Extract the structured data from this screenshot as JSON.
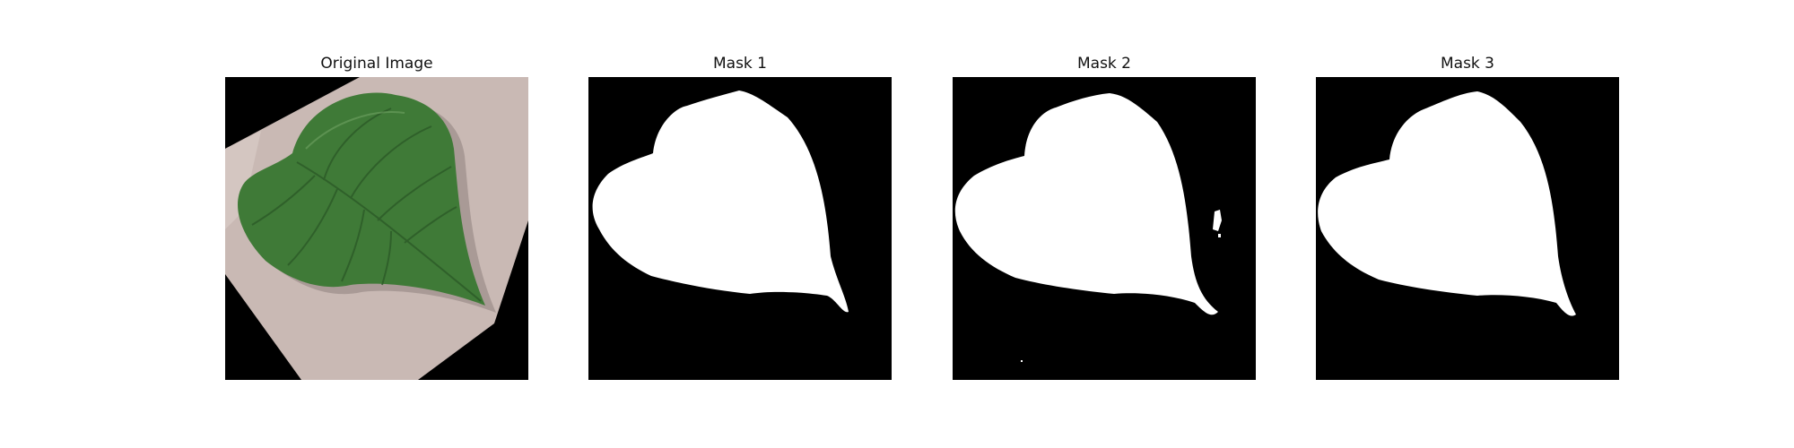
{
  "figure": {
    "panels": [
      {
        "title": "Original Image",
        "kind": "photo",
        "subject": "leaf-on-paper"
      },
      {
        "title": "Mask 1",
        "kind": "binary-mask",
        "foreground": "#ffffff",
        "background": "#000000"
      },
      {
        "title": "Mask 2",
        "kind": "binary-mask",
        "foreground": "#ffffff",
        "background": "#000000"
      },
      {
        "title": "Mask 3",
        "kind": "binary-mask",
        "foreground": "#ffffff",
        "background": "#000000"
      }
    ],
    "colors": {
      "leaf": "#3f7a37",
      "leaf_dark": "#2c5a27",
      "paper": "#c9b9b4",
      "mask_fg": "#ffffff",
      "mask_bg": "#000000"
    }
  }
}
